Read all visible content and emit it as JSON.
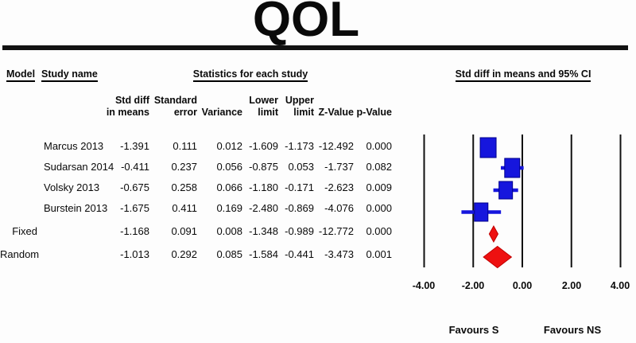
{
  "table": {
    "section_headers": {
      "model": "Model",
      "study_name": "Study name",
      "statistics": "Statistics for each study",
      "ci_plot": "Std diff in means and 95% CI"
    },
    "column_headers": [
      {
        "line1": "Std diff",
        "line2": "in means"
      },
      {
        "line1": "Standard",
        "line2": "error"
      },
      {
        "line1": "",
        "line2": "Variance"
      },
      {
        "line1": "Lower",
        "line2": "limit"
      },
      {
        "line1": "Upper",
        "line2": "limit"
      },
      {
        "line1": "",
        "line2": "Z-Value"
      },
      {
        "line1": "",
        "line2": "p-Value"
      }
    ],
    "rows": [
      {
        "model": "",
        "study": "Marcus 2013",
        "values": [
          "-1.391",
          "0.111",
          "0.012",
          "-1.609",
          "-1.173",
          "-12.492",
          "0.000"
        ]
      },
      {
        "model": "",
        "study": "Sudarsan 2014",
        "values": [
          "-0.411",
          "0.237",
          "0.056",
          "-0.875",
          "0.053",
          "-1.737",
          "0.082"
        ]
      },
      {
        "model": "",
        "study": "Volsky 2013",
        "values": [
          "-0.675",
          "0.258",
          "0.066",
          "-1.180",
          "-0.171",
          "-2.623",
          "0.009"
        ]
      },
      {
        "model": "",
        "study": "Burstein 2013",
        "values": [
          "-1.675",
          "0.411",
          "0.169",
          "-2.480",
          "-0.869",
          "-4.076",
          "0.000"
        ]
      },
      {
        "model": "Fixed",
        "study": "",
        "values": [
          "-1.168",
          "0.091",
          "0.008",
          "-1.348",
          "-0.989",
          "-12.772",
          "0.000"
        ]
      },
      {
        "model": "Random",
        "study": "",
        "values": [
          "-1.013",
          "0.292",
          "0.085",
          "-1.584",
          "-0.441",
          "-3.473",
          "0.001"
        ]
      }
    ]
  },
  "chart_data": {
    "type": "forest",
    "title": "QOL",
    "xlabel": "Std diff in means",
    "xlim": [
      -4,
      4
    ],
    "x_ticks": [
      -4,
      -2,
      0,
      2,
      4
    ],
    "x_tick_labels": [
      "-4.00",
      "-2.00",
      "0.00",
      "2.00",
      "4.00"
    ],
    "grid": "vertical-lines-at-ticks",
    "rows": [
      {
        "label": "Marcus 2013",
        "marker": "square",
        "point": -1.391,
        "lower": -1.609,
        "upper": -1.173,
        "marker_w": 20,
        "marker_h": 25
      },
      {
        "label": "Sudarsan 2014",
        "marker": "square",
        "point": -0.411,
        "lower": -0.875,
        "upper": 0.053,
        "marker_w": 19,
        "marker_h": 24
      },
      {
        "label": "Volsky 2013",
        "marker": "square",
        "point": -0.675,
        "lower": -1.18,
        "upper": -0.171,
        "marker_w": 17,
        "marker_h": 22
      },
      {
        "label": "Burstein 2013",
        "marker": "square",
        "point": -1.675,
        "lower": -2.48,
        "upper": -0.869,
        "marker_w": 17,
        "marker_h": 23
      },
      {
        "label": "Fixed",
        "marker": "diamond",
        "point": -1.168,
        "lower": -1.348,
        "upper": -0.989,
        "marker_h": 20
      },
      {
        "label": "Random",
        "marker": "diamond",
        "point": -1.013,
        "lower": -1.584,
        "upper": -0.441,
        "marker_h": 27
      }
    ],
    "footer_labels": [
      {
        "label": "Favours S",
        "x": -2
      },
      {
        "label": "Favours NS",
        "x": 2
      }
    ],
    "colors": {
      "study": "#1616dd",
      "study_border": "#00008b",
      "summary": "#ee1111",
      "summary_border": "#c00000",
      "grid": "#111111"
    }
  }
}
